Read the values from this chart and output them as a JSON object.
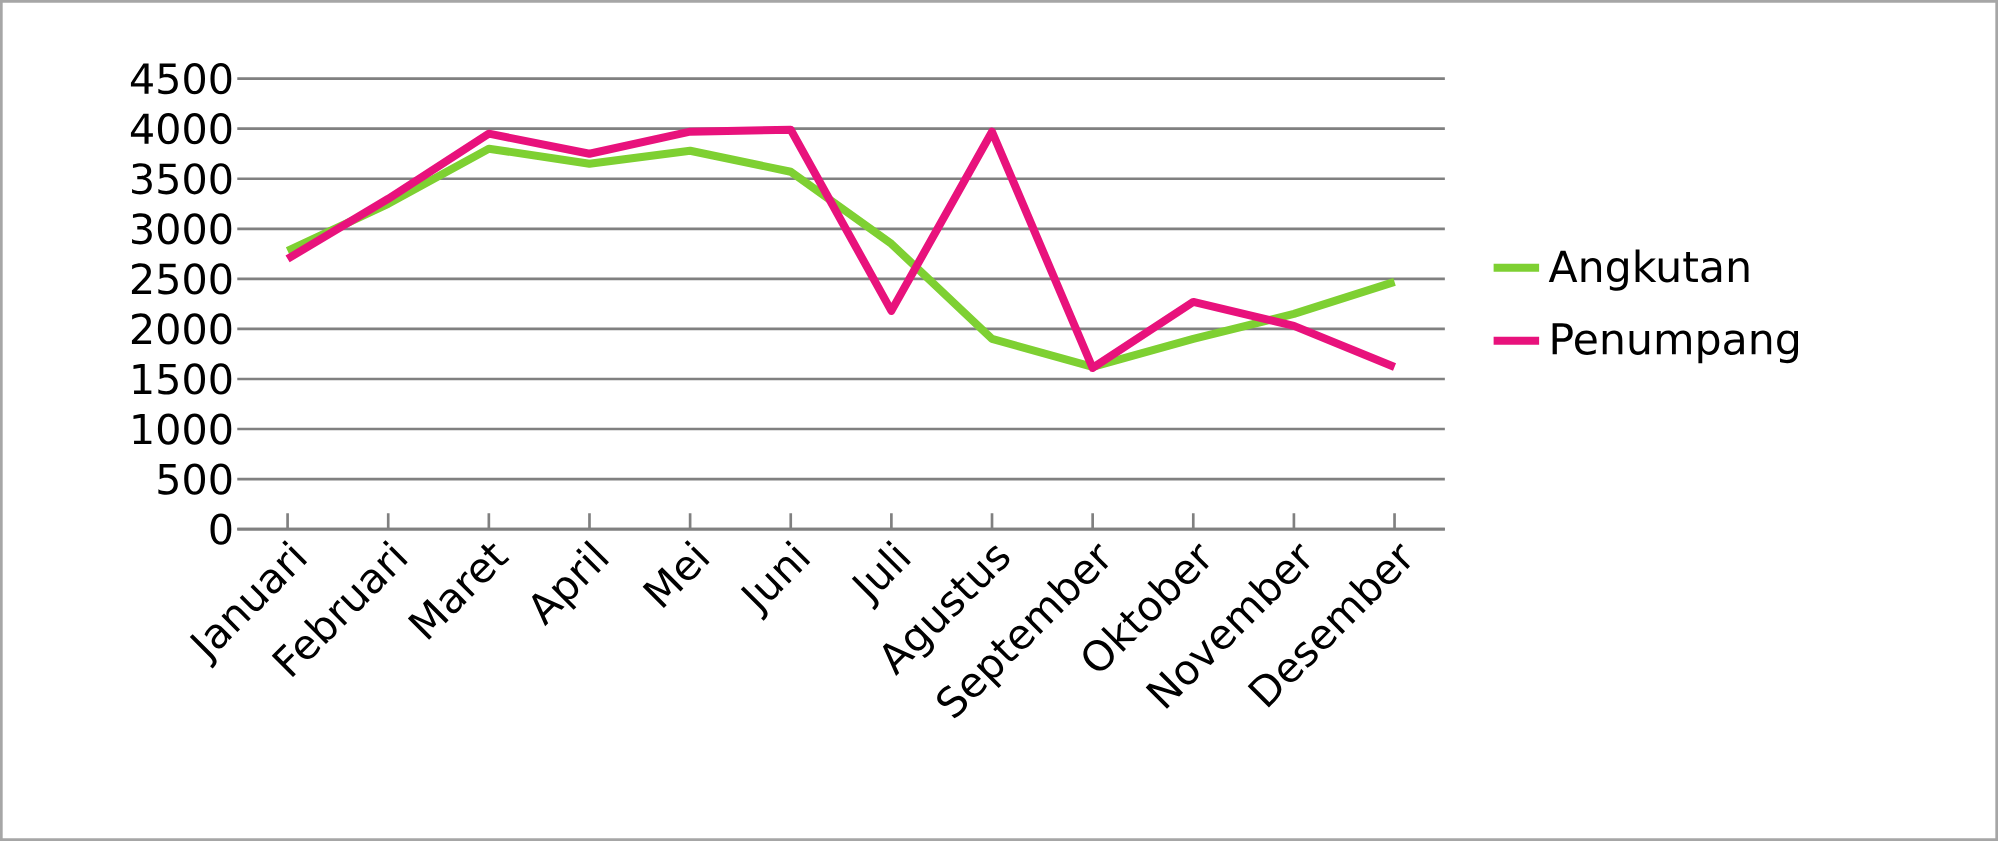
{
  "chart_data": {
    "type": "line",
    "categories": [
      "Januari",
      "Februari",
      "Maret",
      "April",
      "Mei",
      "Juni",
      "Juli",
      "Agustus",
      "September",
      "Oktober",
      "November",
      "Desember"
    ],
    "series": [
      {
        "name": "Angkutan",
        "color": "#7ed032",
        "values": [
          2780,
          3250,
          3800,
          3650,
          3780,
          3570,
          2850,
          1900,
          1620,
          1900,
          2150,
          2470
        ]
      },
      {
        "name": "Penumpang",
        "color": "#e8127c",
        "values": [
          2700,
          3300,
          3950,
          3750,
          3970,
          3990,
          2180,
          3970,
          1610,
          2270,
          2030,
          1620
        ]
      }
    ],
    "ylim": [
      0,
      4500
    ],
    "yticks": [
      0,
      500,
      1000,
      1500,
      2000,
      2500,
      3000,
      3500,
      4000,
      4500
    ],
    "grid": "y",
    "legend": "right",
    "marker": "none",
    "line_style": "solid"
  }
}
